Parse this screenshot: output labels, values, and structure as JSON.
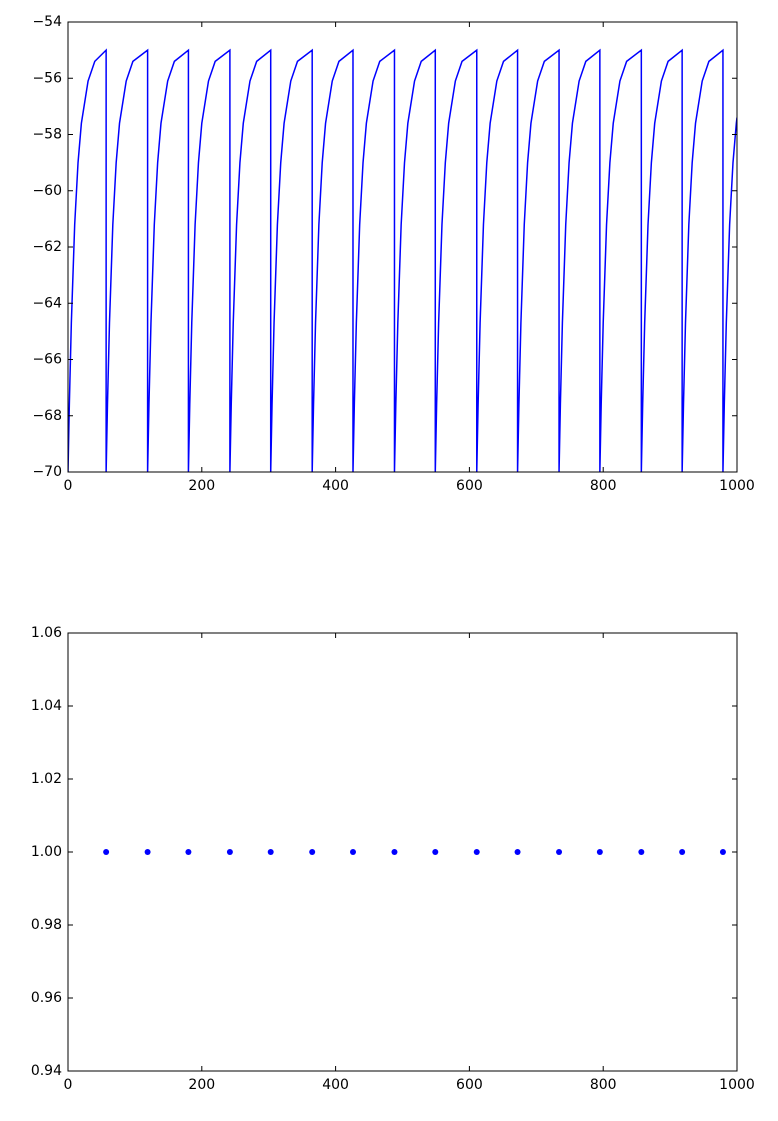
{
  "chart_data": [
    {
      "type": "line",
      "color": "#0000ff",
      "x": [
        0,
        2,
        5,
        10,
        15,
        20,
        30,
        40,
        57,
        57,
        59,
        62,
        67,
        72,
        77,
        87,
        97,
        119,
        119,
        121,
        124,
        129,
        134,
        139,
        149,
        159,
        180,
        180,
        182,
        185,
        190,
        195,
        200,
        210,
        220,
        242,
        242,
        244,
        247,
        252,
        257,
        262,
        272,
        282,
        303,
        303,
        305,
        308,
        313,
        318,
        323,
        333,
        343,
        365,
        365,
        367,
        370,
        375,
        380,
        385,
        395,
        405,
        426,
        426,
        428,
        431,
        436,
        441,
        446,
        456,
        466,
        488,
        488,
        490,
        493,
        498,
        503,
        508,
        518,
        528,
        549,
        549,
        551,
        554,
        559,
        564,
        569,
        579,
        589,
        611,
        611,
        613,
        616,
        621,
        626,
        631,
        641,
        651,
        672,
        672,
        674,
        677,
        682,
        687,
        692,
        702,
        712,
        734,
        734,
        736,
        739,
        744,
        749,
        754,
        764,
        774,
        795,
        795,
        797,
        800,
        805,
        810,
        815,
        825,
        835,
        857,
        857,
        859,
        862,
        867,
        872,
        877,
        887,
        897,
        918,
        918,
        920,
        923,
        928,
        933,
        938,
        948,
        958,
        979,
        979,
        981,
        984,
        989,
        994,
        999,
        1000
      ],
      "values": [
        -70,
        -67.6,
        -64.7,
        -61.2,
        -59.0,
        -57.6,
        -56.1,
        -55.4,
        -55.0,
        -70,
        -67.6,
        -64.7,
        -61.2,
        -59.0,
        -57.6,
        -56.1,
        -55.4,
        -55.0,
        -70,
        -67.6,
        -64.7,
        -61.2,
        -59.0,
        -57.6,
        -56.1,
        -55.4,
        -55.0,
        -70,
        -67.6,
        -64.7,
        -61.2,
        -59.0,
        -57.6,
        -56.1,
        -55.4,
        -55.0,
        -70,
        -67.6,
        -64.7,
        -61.2,
        -59.0,
        -57.6,
        -56.1,
        -55.4,
        -55.0,
        -70,
        -67.6,
        -64.7,
        -61.2,
        -59.0,
        -57.6,
        -56.1,
        -55.4,
        -55.0,
        -70,
        -67.6,
        -64.7,
        -61.2,
        -59.0,
        -57.6,
        -56.1,
        -55.4,
        -55.0,
        -70,
        -67.6,
        -64.7,
        -61.2,
        -59.0,
        -57.6,
        -56.1,
        -55.4,
        -55.0,
        -70,
        -67.6,
        -64.7,
        -61.2,
        -59.0,
        -57.6,
        -56.1,
        -55.4,
        -55.0,
        -70,
        -67.6,
        -64.7,
        -61.2,
        -59.0,
        -57.6,
        -56.1,
        -55.4,
        -55.0,
        -70,
        -67.6,
        -64.7,
        -61.2,
        -59.0,
        -57.6,
        -56.1,
        -55.4,
        -55.0,
        -70,
        -67.6,
        -64.7,
        -61.2,
        -59.0,
        -57.6,
        -56.1,
        -55.4,
        -55.0,
        -70,
        -67.6,
        -64.7,
        -61.2,
        -59.0,
        -57.6,
        -56.1,
        -55.4,
        -55.0,
        -70,
        -67.6,
        -64.7,
        -61.2,
        -59.0,
        -57.6,
        -56.1,
        -55.4,
        -55.0,
        -70,
        -67.6,
        -64.7,
        -61.2,
        -59.0,
        -57.6,
        -56.1,
        -55.4,
        -55.0,
        -70,
        -67.6,
        -64.7,
        -61.2,
        -59.0,
        -57.6,
        -56.1,
        -55.4,
        -55.0,
        -70,
        -67.6,
        -64.7,
        -61.2,
        -59.0,
        -57.6,
        -57.4
      ],
      "xlim": [
        0,
        1000
      ],
      "xticks": [
        0,
        200,
        400,
        600,
        800,
        1000
      ],
      "ylim": [
        -70,
        -54
      ],
      "yticks": [
        {
          "value": -70,
          "label": "−70"
        },
        {
          "value": -68,
          "label": "−68"
        },
        {
          "value": -66,
          "label": "−66"
        },
        {
          "value": -64,
          "label": "−64"
        },
        {
          "value": -62,
          "label": "−62"
        },
        {
          "value": -60,
          "label": "−60"
        },
        {
          "value": -58,
          "label": "−58"
        },
        {
          "value": -56,
          "label": "−56"
        },
        {
          "value": -54,
          "label": "−54"
        }
      ]
    },
    {
      "type": "scatter",
      "color": "#0000ff",
      "x": [
        57,
        119,
        180,
        242,
        303,
        365,
        426,
        488,
        549,
        611,
        672,
        734,
        795,
        857,
        918,
        979
      ],
      "values": [
        1,
        1,
        1,
        1,
        1,
        1,
        1,
        1,
        1,
        1,
        1,
        1,
        1,
        1,
        1,
        1
      ],
      "xlim": [
        0,
        1000
      ],
      "xticks": [
        0,
        200,
        400,
        600,
        800,
        1000
      ],
      "ylim": [
        0.94,
        1.06
      ],
      "yticks": [
        0.94,
        0.96,
        0.98,
        {
          "value": 1,
          "label": "1.00"
        },
        1.02,
        1.04,
        1.06
      ]
    }
  ]
}
